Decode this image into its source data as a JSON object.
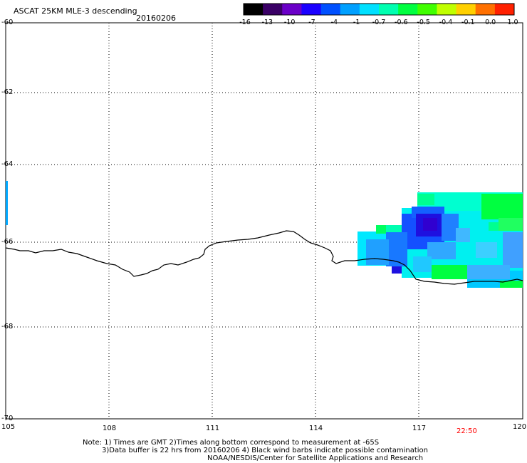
{
  "header": {
    "title": "ASCAT 25KM MLE-3 descending",
    "date": "20160206"
  },
  "colorbar": {
    "labels": [
      "-16",
      "-13",
      "-10",
      "-7",
      "-4",
      "-1",
      "-0.7",
      "-0.6",
      "-0.5",
      "-0.4",
      "-0.1",
      "0.0",
      "1.0"
    ],
    "colors": [
      "#000000",
      "#3a0066",
      "#6a00c8",
      "#1a00ff",
      "#0050ff",
      "#00a0ff",
      "#00e0ff",
      "#00ffb0",
      "#00ff40",
      "#40ff00",
      "#c0ff00",
      "#ffd000",
      "#ff7000",
      "#ff2000"
    ]
  },
  "map": {
    "lon_labels": [
      "105",
      "108",
      "111",
      "114",
      "117",
      "120"
    ],
    "lat_labels": [
      "-60",
      "-62",
      "-64",
      "-66",
      "-68",
      "-70"
    ],
    "time_label": "22:50",
    "time_color": "#ff0000",
    "swath_color_cyan": "#00e8ff",
    "swath_color_green": "#00ff40",
    "swath_color_blue": "#1450ff",
    "swath_color_darkblue": "#1e10e0"
  },
  "footer": {
    "line1": "Note: 1) Times are GMT 2)Times along bottom correspond to measurement at -65S",
    "line2": "3)Data buffer is 22 hrs from 20160206 4) Black wind barbs indicate possible contamination",
    "line3": "NOAA/NESDIS/Center for Satellite Applications and Research"
  }
}
